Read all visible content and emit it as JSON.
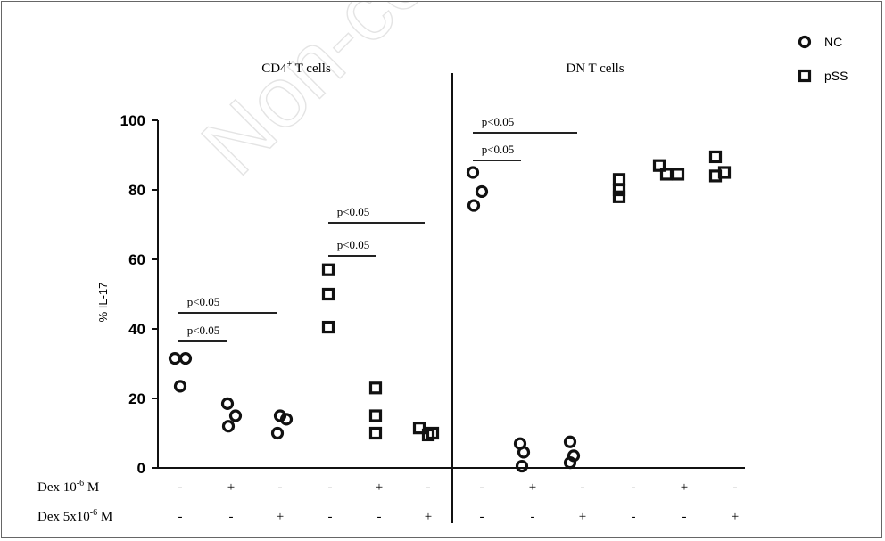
{
  "watermark": "Non-co",
  "chart_data": {
    "type": "scatter",
    "ylabel": "% IL-17",
    "ylim": [
      0,
      100
    ],
    "yticks": [
      "0",
      "20",
      "40",
      "60",
      "80",
      "100"
    ],
    "panels": [
      {
        "title_main": "CD4",
        "title_sup": "+",
        "title_rest": " T cells"
      },
      {
        "title_main": "DN T cells",
        "title_sup": "",
        "title_rest": ""
      }
    ],
    "legend": [
      {
        "name": "NC",
        "marker": "circle"
      },
      {
        "name": "pSS",
        "marker": "square"
      }
    ],
    "condition_rows": [
      {
        "label_main": "Dex 10",
        "label_sup": "-6",
        "label_rest": " M",
        "values": [
          "-",
          "+",
          "-",
          "-",
          "+",
          "-",
          "-",
          "+",
          "-",
          "-",
          "+",
          "-"
        ]
      },
      {
        "label_main": "Dex 5x10",
        "label_sup": "-6",
        "label_rest": " M",
        "values": [
          "-",
          "-",
          "+",
          "-",
          "-",
          "+",
          "-",
          "-",
          "+",
          "-",
          "-",
          "+"
        ]
      }
    ],
    "groups": [
      {
        "panel": "CD4+ T cells",
        "series": "NC",
        "dex": "none",
        "values": [
          31.5,
          31.5,
          23.5
        ]
      },
      {
        "panel": "CD4+ T cells",
        "series": "NC",
        "dex": "10^-6 M",
        "values": [
          18.5,
          15,
          12
        ]
      },
      {
        "panel": "CD4+ T cells",
        "series": "NC",
        "dex": "5x10^-6 M",
        "values": [
          15,
          14,
          10
        ]
      },
      {
        "panel": "CD4+ T cells",
        "series": "pSS",
        "dex": "none",
        "values": [
          57,
          50,
          40.5
        ]
      },
      {
        "panel": "CD4+ T cells",
        "series": "pSS",
        "dex": "10^-6 M",
        "values": [
          23,
          15,
          10
        ]
      },
      {
        "panel": "CD4+ T cells",
        "series": "pSS",
        "dex": "5x10^-6 M",
        "values": [
          11.5,
          9.5,
          10
        ]
      },
      {
        "panel": "DN T cells",
        "series": "NC",
        "dex": "none",
        "values": [
          85,
          79.5,
          75.5
        ]
      },
      {
        "panel": "DN T cells",
        "series": "NC",
        "dex": "10^-6 M",
        "values": [
          7,
          4.5,
          0.5
        ]
      },
      {
        "panel": "DN T cells",
        "series": "NC",
        "dex": "5x10^-6 M",
        "values": [
          7.5,
          3.5,
          1.5
        ]
      },
      {
        "panel": "DN T cells",
        "series": "pSS",
        "dex": "none",
        "values": [
          83,
          80,
          78
        ]
      },
      {
        "panel": "DN T cells",
        "series": "pSS",
        "dex": "10^-6 M",
        "values": [
          87,
          84.5,
          84.5
        ]
      },
      {
        "panel": "DN T cells",
        "series": "pSS",
        "dex": "5x10^-6 M",
        "values": [
          89.5,
          84,
          85
        ]
      }
    ],
    "significance": [
      {
        "label": "p<0.05",
        "from_group": 0,
        "to_group": 1
      },
      {
        "label": "p<0.05",
        "from_group": 0,
        "to_group": 2
      },
      {
        "label": "p<0.05",
        "from_group": 3,
        "to_group": 4
      },
      {
        "label": "p<0.05",
        "from_group": 3,
        "to_group": 5
      },
      {
        "label": "p<0.05",
        "from_group": 6,
        "to_group": 7
      },
      {
        "label": "p<0.05",
        "from_group": 6,
        "to_group": 8
      }
    ]
  }
}
